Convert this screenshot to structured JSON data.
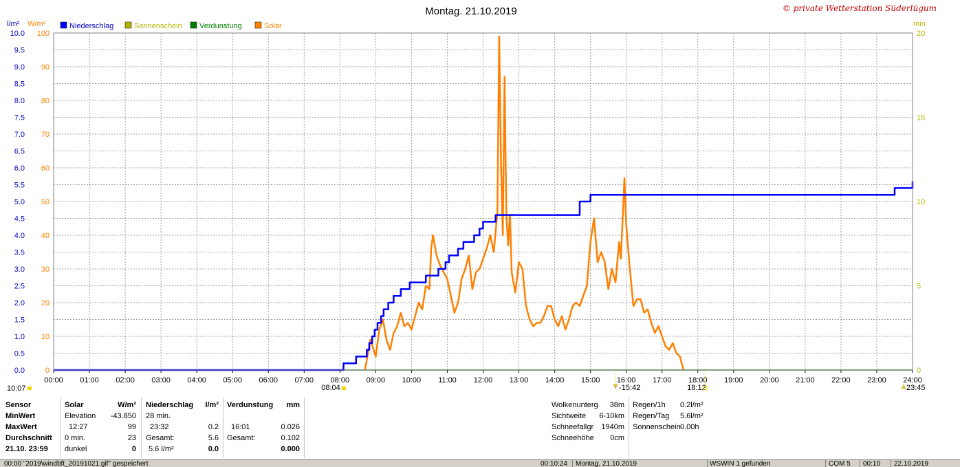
{
  "chart_data": {
    "type": "line",
    "title": "Montag. 21.10.2019",
    "watermark": "© private Wetterstation Süderlügum",
    "left_axis_unit_1": "l/m²",
    "left_axis_unit_2": "W/m²",
    "right_axis_unit": "min",
    "legend": [
      {
        "name": "Niederschlag",
        "color": "#0000ff"
      },
      {
        "name": "Sonnenschein",
        "color": "#b4b400"
      },
      {
        "name": "Verdunstung",
        "color": "#008000"
      },
      {
        "name": "Solar",
        "color": "#ff8000"
      }
    ],
    "x_ticks": [
      "00:00",
      "01:00",
      "02:00",
      "03:00",
      "04:00",
      "05:00",
      "06:00",
      "07:00",
      "08:00",
      "09:00",
      "10:00",
      "11:00",
      "12:00",
      "13:00",
      "14:00",
      "15:00",
      "16:00",
      "17:00",
      "18:00",
      "19:00",
      "20:00",
      "21:00",
      "22:00",
      "23:00",
      "24:00"
    ],
    "y_ticks_precip": [
      "10.0",
      "9.5",
      "9.0",
      "8.5",
      "8.0",
      "7.5",
      "7.0",
      "6.5",
      "6.0",
      "5.5",
      "5.0",
      "4.5",
      "4.0",
      "3.5",
      "3.0",
      "2.5",
      "2.0",
      "1.5",
      "1.0",
      "0.5",
      "0.0"
    ],
    "y_ticks_solar": [
      "100",
      "90",
      "80",
      "70",
      "60",
      "50",
      "40",
      "30",
      "20",
      "10",
      "0"
    ],
    "y_ticks_min": [
      "20",
      "15",
      "10",
      "5",
      "0"
    ],
    "xlim": [
      0,
      24
    ],
    "ylim_precip": [
      0,
      10
    ],
    "ylim_solar": [
      0,
      100
    ],
    "ylim_min": [
      0,
      20
    ],
    "grid": true,
    "sun_markers": {
      "left_label": "10:07",
      "sunrise": "08:04",
      "noon": "15:42",
      "sunset": "18:12",
      "right_label": "23:45"
    },
    "series": [
      {
        "name": "Niederschlag",
        "axis": "precip",
        "color": "#0000ff",
        "step": true,
        "x": [
          0,
          8.1,
          8.45,
          8.75,
          8.82,
          8.9,
          8.97,
          9.05,
          9.15,
          9.22,
          9.35,
          9.5,
          9.7,
          9.95,
          10.05,
          10.4,
          10.75,
          10.95,
          11.05,
          11.3,
          11.45,
          11.6,
          11.75,
          11.9,
          12.0,
          12.2,
          12.35,
          14.0,
          14.7,
          14.85,
          15.0,
          15.5,
          19.8,
          23.5,
          24.0
        ],
        "y": [
          0,
          0.2,
          0.4,
          0.6,
          0.8,
          1.0,
          1.2,
          1.4,
          1.6,
          1.8,
          2.0,
          2.2,
          2.4,
          2.6,
          2.6,
          2.8,
          3.0,
          3.2,
          3.4,
          3.6,
          3.8,
          3.8,
          4.0,
          4.2,
          4.4,
          4.4,
          4.6,
          4.6,
          5.0,
          5.0,
          5.2,
          5.2,
          5.2,
          5.4,
          5.6
        ]
      },
      {
        "name": "Solar",
        "axis": "solar",
        "color": "#ff8000",
        "x": [
          8.7,
          8.85,
          9.0,
          9.1,
          9.2,
          9.3,
          9.4,
          9.5,
          9.6,
          9.7,
          9.8,
          9.9,
          10.0,
          10.1,
          10.2,
          10.3,
          10.4,
          10.5,
          10.55,
          10.6,
          10.7,
          10.8,
          10.9,
          11.0,
          11.1,
          11.2,
          11.3,
          11.4,
          11.5,
          11.6,
          11.7,
          11.8,
          11.9,
          12.0,
          12.1,
          12.2,
          12.3,
          12.4,
          12.45,
          12.5,
          12.55,
          12.6,
          12.65,
          12.7,
          12.75,
          12.8,
          12.9,
          13.0,
          13.1,
          13.2,
          13.3,
          13.4,
          13.5,
          13.6,
          13.7,
          13.8,
          13.9,
          14.0,
          14.1,
          14.2,
          14.3,
          14.4,
          14.5,
          14.6,
          14.7,
          14.8,
          14.9,
          15.0,
          15.1,
          15.2,
          15.3,
          15.4,
          15.5,
          15.6,
          15.7,
          15.8,
          15.85,
          15.9,
          15.95,
          16.0,
          16.1,
          16.2,
          16.3,
          16.4,
          16.5,
          16.6,
          16.7,
          16.8,
          16.9,
          17.0,
          17.1,
          17.2,
          17.3,
          17.4,
          17.5,
          17.55,
          17.6
        ],
        "y": [
          0,
          9,
          4,
          12,
          15,
          9,
          6,
          11,
          13,
          17,
          13,
          14,
          12,
          16,
          20,
          18,
          25,
          24,
          36,
          40,
          34,
          31,
          29,
          27,
          22,
          17,
          20,
          27,
          30,
          34,
          24,
          29,
          30,
          33,
          36,
          40,
          35,
          47,
          99,
          62,
          40,
          87,
          46,
          37,
          46,
          29,
          23,
          32,
          30,
          19,
          15,
          13,
          14,
          14,
          16,
          19,
          19,
          15,
          13,
          16,
          12,
          15,
          19,
          20,
          19,
          22,
          25,
          38,
          45,
          32,
          35,
          32,
          24,
          30,
          26,
          38,
          33,
          45,
          57,
          43,
          30,
          19,
          21,
          21,
          17,
          18,
          14,
          11,
          13,
          10,
          7,
          6,
          8,
          5,
          4,
          2,
          0
        ]
      },
      {
        "name": "Verdunstung",
        "axis": "precip",
        "color": "#008000",
        "x": [
          0,
          24
        ],
        "y": [
          0,
          0
        ]
      }
    ]
  },
  "panel": {
    "sensor_header": "Sensor",
    "minwert": "MinWert",
    "maxwert": "MaxWert",
    "durchschnitt": "Durchschnitt",
    "date": "21.10. 23:59",
    "solar_header": "Solar",
    "solar_unit": "W/m²",
    "solar_min_label": "Elevation",
    "solar_min_value": "-43.850",
    "solar_max_time": "12:27",
    "solar_max_value": "99",
    "solar_avg_label": "0 min.",
    "solar_avg_value": "23",
    "solar_last_label": "dunkel",
    "solar_last_value": "0",
    "precip_header": "Niederschlag",
    "precip_unit": "l/m²",
    "precip_min_label": "28 min.",
    "precip_max_time": "23:32",
    "precip_max_value": "0.2",
    "precip_total_label": "Gesamt:",
    "precip_total_value": "5.6",
    "precip_last_label": "5.6 l/m²",
    "precip_last_value": "0.0",
    "evap_header": "Verdunstung",
    "evap_unit": "mm",
    "evap_max_time": "16:01",
    "evap_max_value": "0.026",
    "evap_total_label": "Gesamt:",
    "evap_total_value": "0.102",
    "evap_last_value": "0.000",
    "wolken_label": "Wolkenunterg",
    "wolken_value": "38m",
    "sicht_label": "Sichtweite",
    "sicht_value": "6-10km",
    "schneefall_label": "Schneefallgr",
    "schneefall_value": "1940m",
    "schneehoehe_label": "Schneehöhe",
    "schneehoehe_value": "0cm",
    "regen1h_label": "Regen/1h",
    "regen1h_value": "0.2l/m²",
    "regentag_label": "Regen/Tag",
    "regentag_value": "5.6l/m²",
    "sonnenschein_label": "Sonnenschein",
    "sonnenschein_value": "0.00h"
  },
  "statusbar": {
    "left": "00:00   \"2019\\windbft_20191021.gif\" gespeichert",
    "time": "00:10:24",
    "date": "Montag, 21.10.2019",
    "found": "WSWIN 1 gefunden",
    "com": "COM 5",
    "clock": "00:10",
    "date2": "22.10.2019"
  },
  "colors": {
    "axis_precip": "#0000c0",
    "axis_solar": "#ff8000",
    "axis_min": "#b4b400",
    "grid": "#a0a0a0",
    "watermark": "#c00000"
  }
}
